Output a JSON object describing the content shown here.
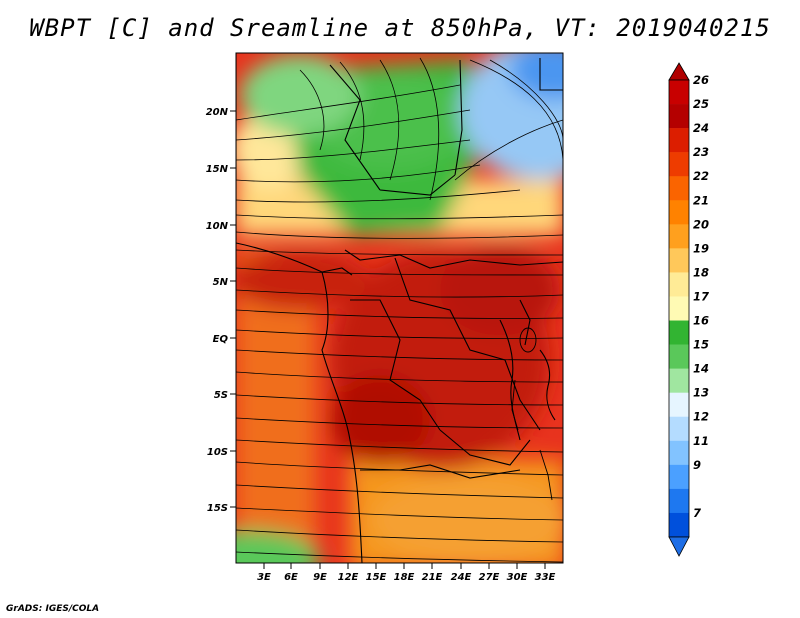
{
  "title": "WBPT [C] and Sreamline at 850hPa, VT: 2019040215",
  "footer": "GrADS: IGES/COLA",
  "map": {
    "lat_labels": [
      "20N",
      "15N",
      "10N",
      "5N",
      "EQ",
      "5S",
      "10S",
      "15S"
    ],
    "lon_labels": [
      "3E",
      "6E",
      "9E",
      "12E",
      "15E",
      "18E",
      "21E",
      "24E",
      "27E",
      "30E",
      "33E"
    ]
  },
  "colorbar": {
    "labels": [
      "26",
      "25",
      "24",
      "23",
      "22",
      "21",
      "20",
      "19",
      "18",
      "17",
      "16",
      "15",
      "14",
      "13",
      "12",
      "11",
      "9",
      "7"
    ],
    "colors": [
      "#c80000",
      "#b40000",
      "#dc1e00",
      "#ee3c00",
      "#fa6400",
      "#ff8200",
      "#ffa01e",
      "#ffc85a",
      "#ffeb96",
      "#fffab4",
      "#32b432",
      "#5ac85a",
      "#a0e6a0",
      "#e6f5ff",
      "#b4dcff",
      "#82c3ff",
      "#4ba0ff",
      "#1e78f0",
      "#0050dc"
    ],
    "over_color": "#b00000",
    "under_color": "#1e6ee6"
  }
}
